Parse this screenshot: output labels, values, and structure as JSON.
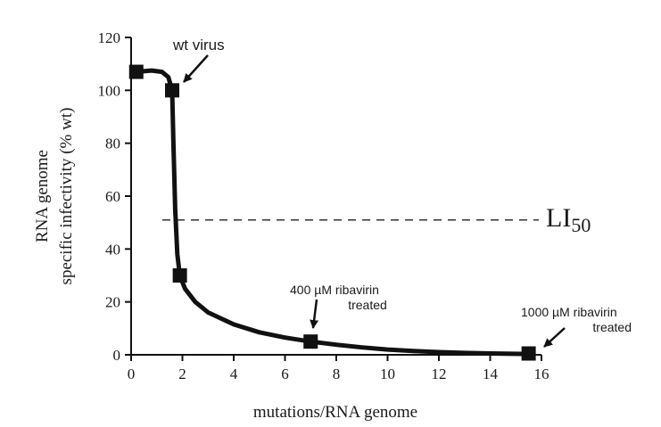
{
  "chart_data": {
    "type": "line",
    "title": "",
    "xlabel": "mutations/RNA genome",
    "ylabel_line1": "RNA genome",
    "ylabel_line2": "specific infectivity (% wt)",
    "xlim": [
      0,
      16
    ],
    "ylim": [
      0,
      120
    ],
    "x_ticks": [
      0,
      2,
      4,
      6,
      8,
      10,
      12,
      14,
      16
    ],
    "y_ticks": [
      0,
      20,
      40,
      60,
      80,
      100,
      120
    ],
    "grid": false,
    "series": [
      {
        "points": [
          {
            "x": 0.2,
            "y": 107
          },
          {
            "x": 1.6,
            "y": 100
          },
          {
            "x": 1.9,
            "y": 30
          },
          {
            "x": 7.0,
            "y": 5
          },
          {
            "x": 15.5,
            "y": 0.5
          }
        ],
        "curve": [
          [
            0.2,
            107
          ],
          [
            0.8,
            107.5
          ],
          [
            1.2,
            107
          ],
          [
            1.45,
            105
          ],
          [
            1.6,
            100
          ],
          [
            1.65,
            80
          ],
          [
            1.72,
            55
          ],
          [
            1.8,
            38
          ],
          [
            1.9,
            30
          ],
          [
            2.1,
            25
          ],
          [
            2.5,
            20
          ],
          [
            3,
            16
          ],
          [
            4,
            11.5
          ],
          [
            5,
            8.5
          ],
          [
            6,
            6.5
          ],
          [
            7,
            5
          ],
          [
            8,
            3.8
          ],
          [
            9,
            2.8
          ],
          [
            10,
            2.0
          ],
          [
            11,
            1.4
          ],
          [
            12,
            1.0
          ],
          [
            13,
            0.7
          ],
          [
            14,
            0.5
          ],
          [
            15.5,
            0.3
          ]
        ]
      }
    ],
    "reference_line": {
      "y": 51,
      "label": "LI",
      "label_sub": "50"
    },
    "annotations": [
      {
        "text": "wt virus",
        "target": {
          "x": 1.6,
          "y": 100
        }
      },
      {
        "lines": [
          "400 µM ribavirin",
          "treated"
        ],
        "target": {
          "x": 7.0,
          "y": 5
        }
      },
      {
        "lines": [
          "1000 µM ribavirin",
          "treated"
        ],
        "target": {
          "x": 15.5,
          "y": 0.5
        }
      }
    ]
  }
}
